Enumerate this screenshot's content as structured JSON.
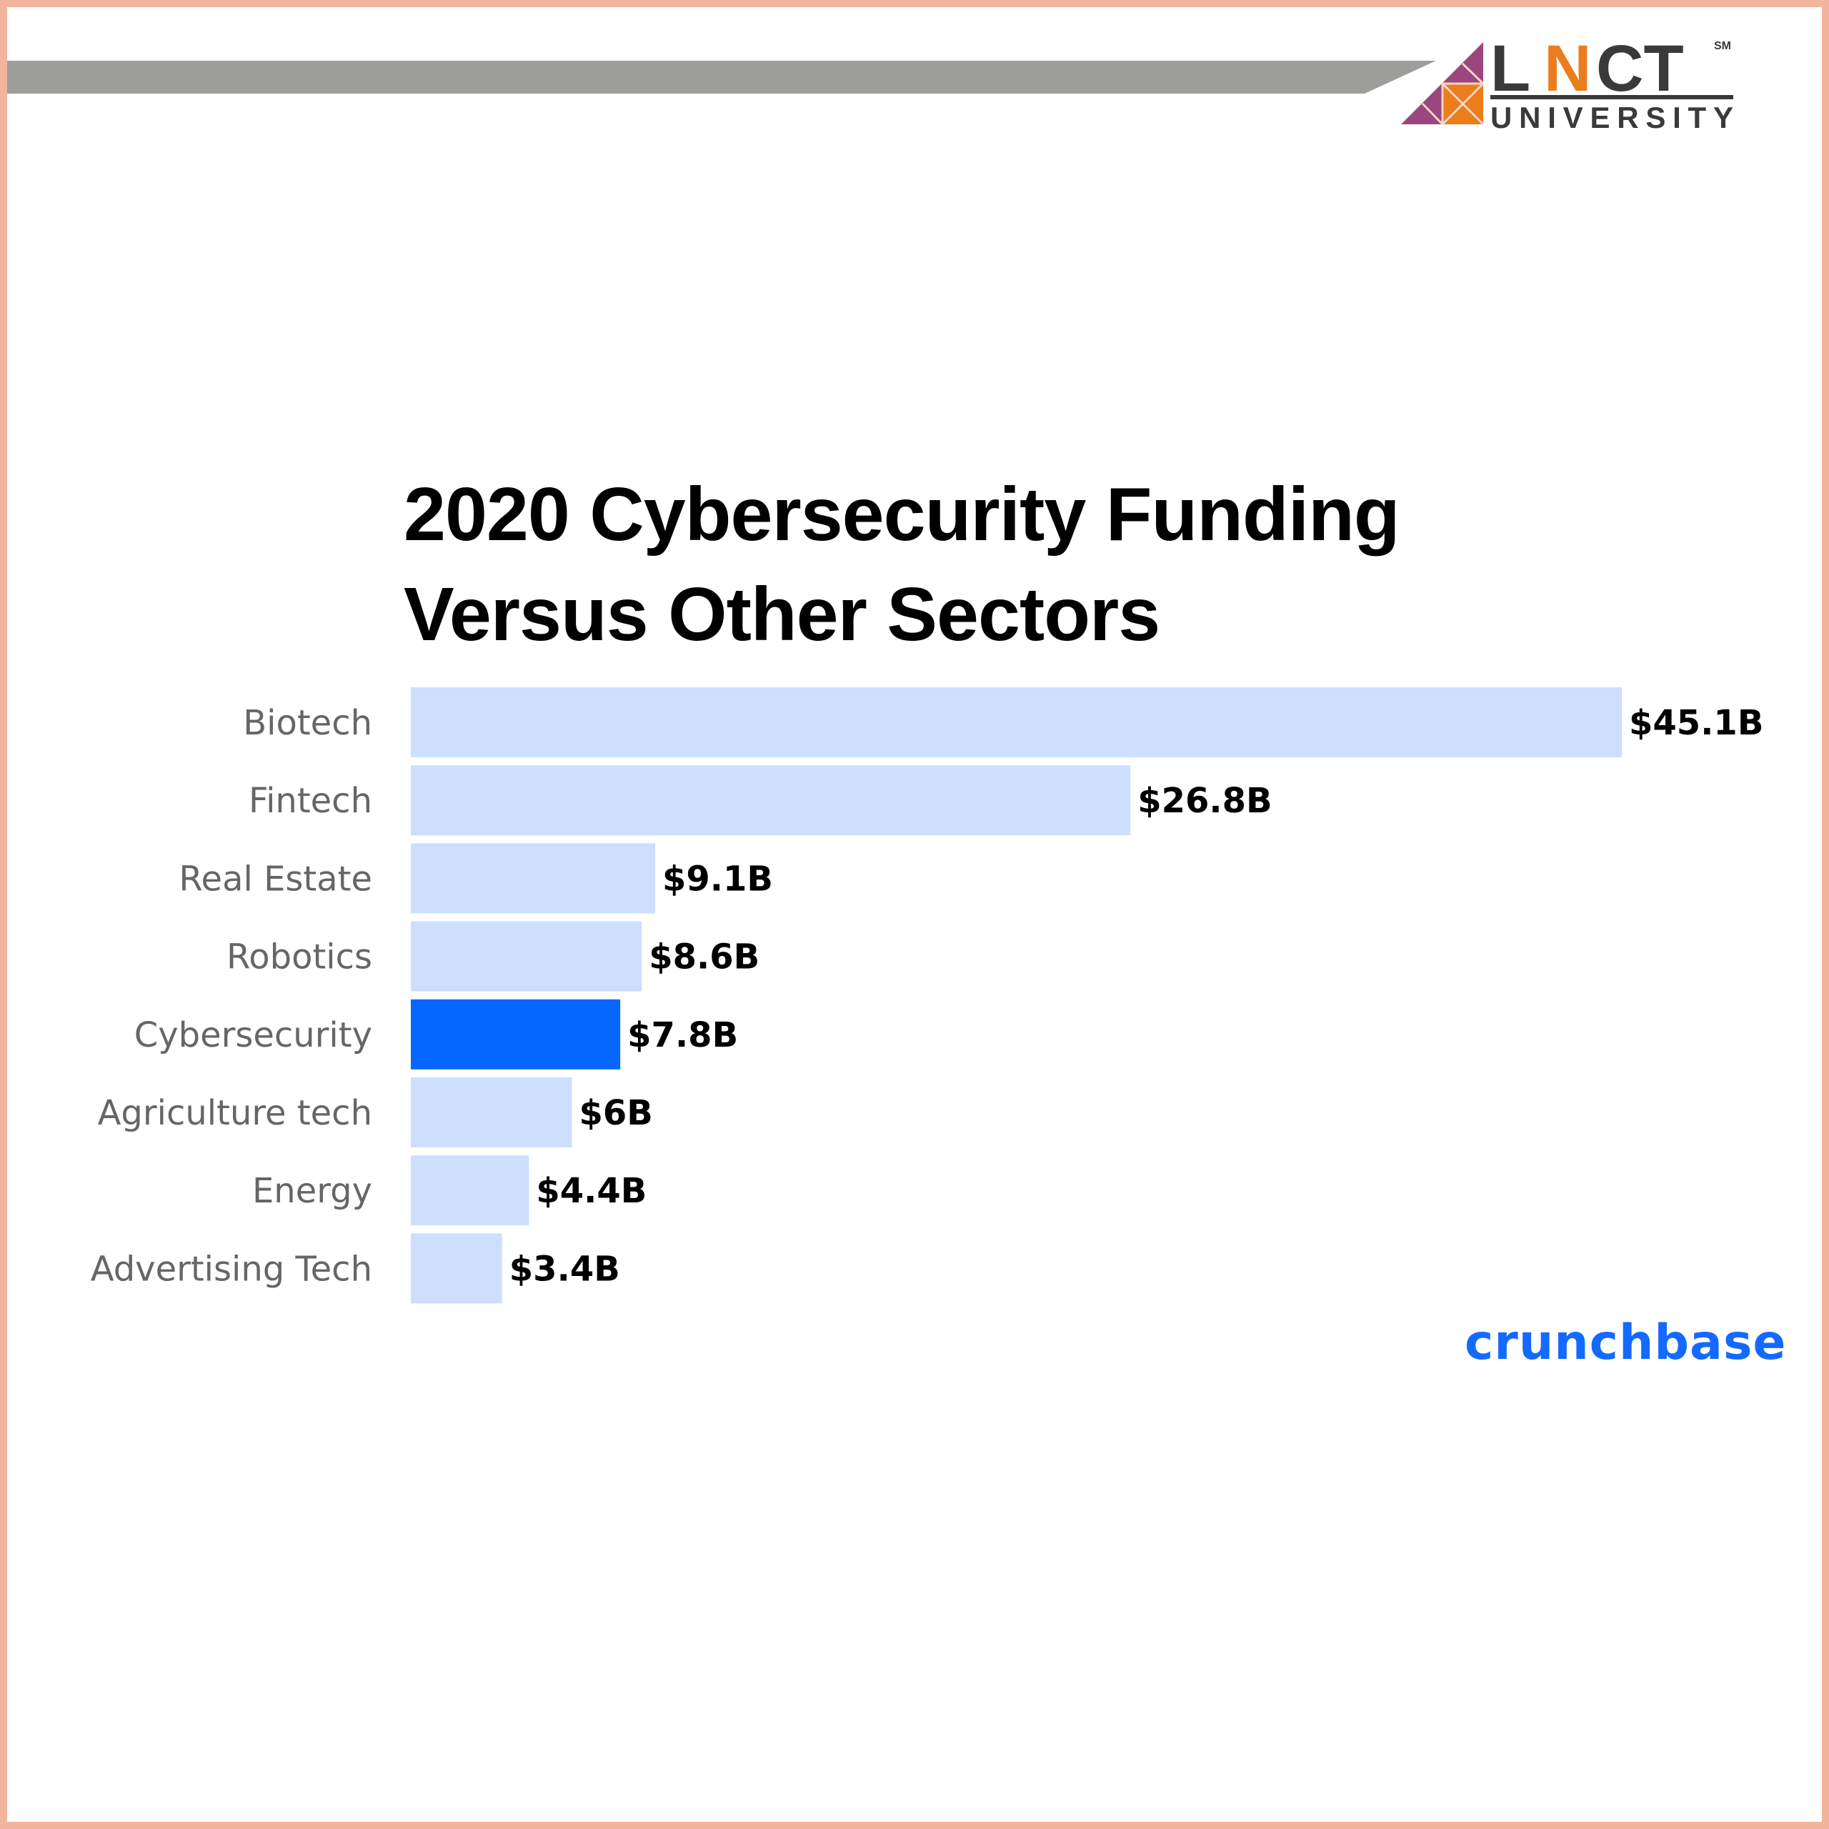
{
  "logo": {
    "text": "LNCT",
    "subtext": "UNIVERSITY",
    "mark": "SM"
  },
  "colors": {
    "bar": "#cddffd",
    "highlight": "#0567ff",
    "border": "#f2b49c",
    "brand": "#146aff"
  },
  "source": "crunchbase",
  "chart_data": {
    "type": "bar",
    "orientation": "horizontal",
    "title": "2020 Cybersecurity Funding Versus Other Sectors",
    "title_lines": [
      "2020 Cybersecurity Funding",
      "Versus Other Sectors"
    ],
    "categories": [
      "Biotech",
      "Fintech",
      "Real Estate",
      "Robotics",
      "Cybersecurity",
      "Agriculture tech",
      "Energy",
      "Advertising Tech"
    ],
    "values": [
      45.1,
      26.8,
      9.1,
      8.6,
      7.8,
      6,
      4.4,
      3.4
    ],
    "data_labels": [
      "$45.1B",
      "$26.8B",
      "$9.1B",
      "$8.6B",
      "$7.8B",
      "$6B",
      "$4.4B",
      "$3.4B"
    ],
    "unit": "$B",
    "highlight": "Cybersecurity",
    "grid": false,
    "xlabel": "",
    "ylabel": ""
  }
}
